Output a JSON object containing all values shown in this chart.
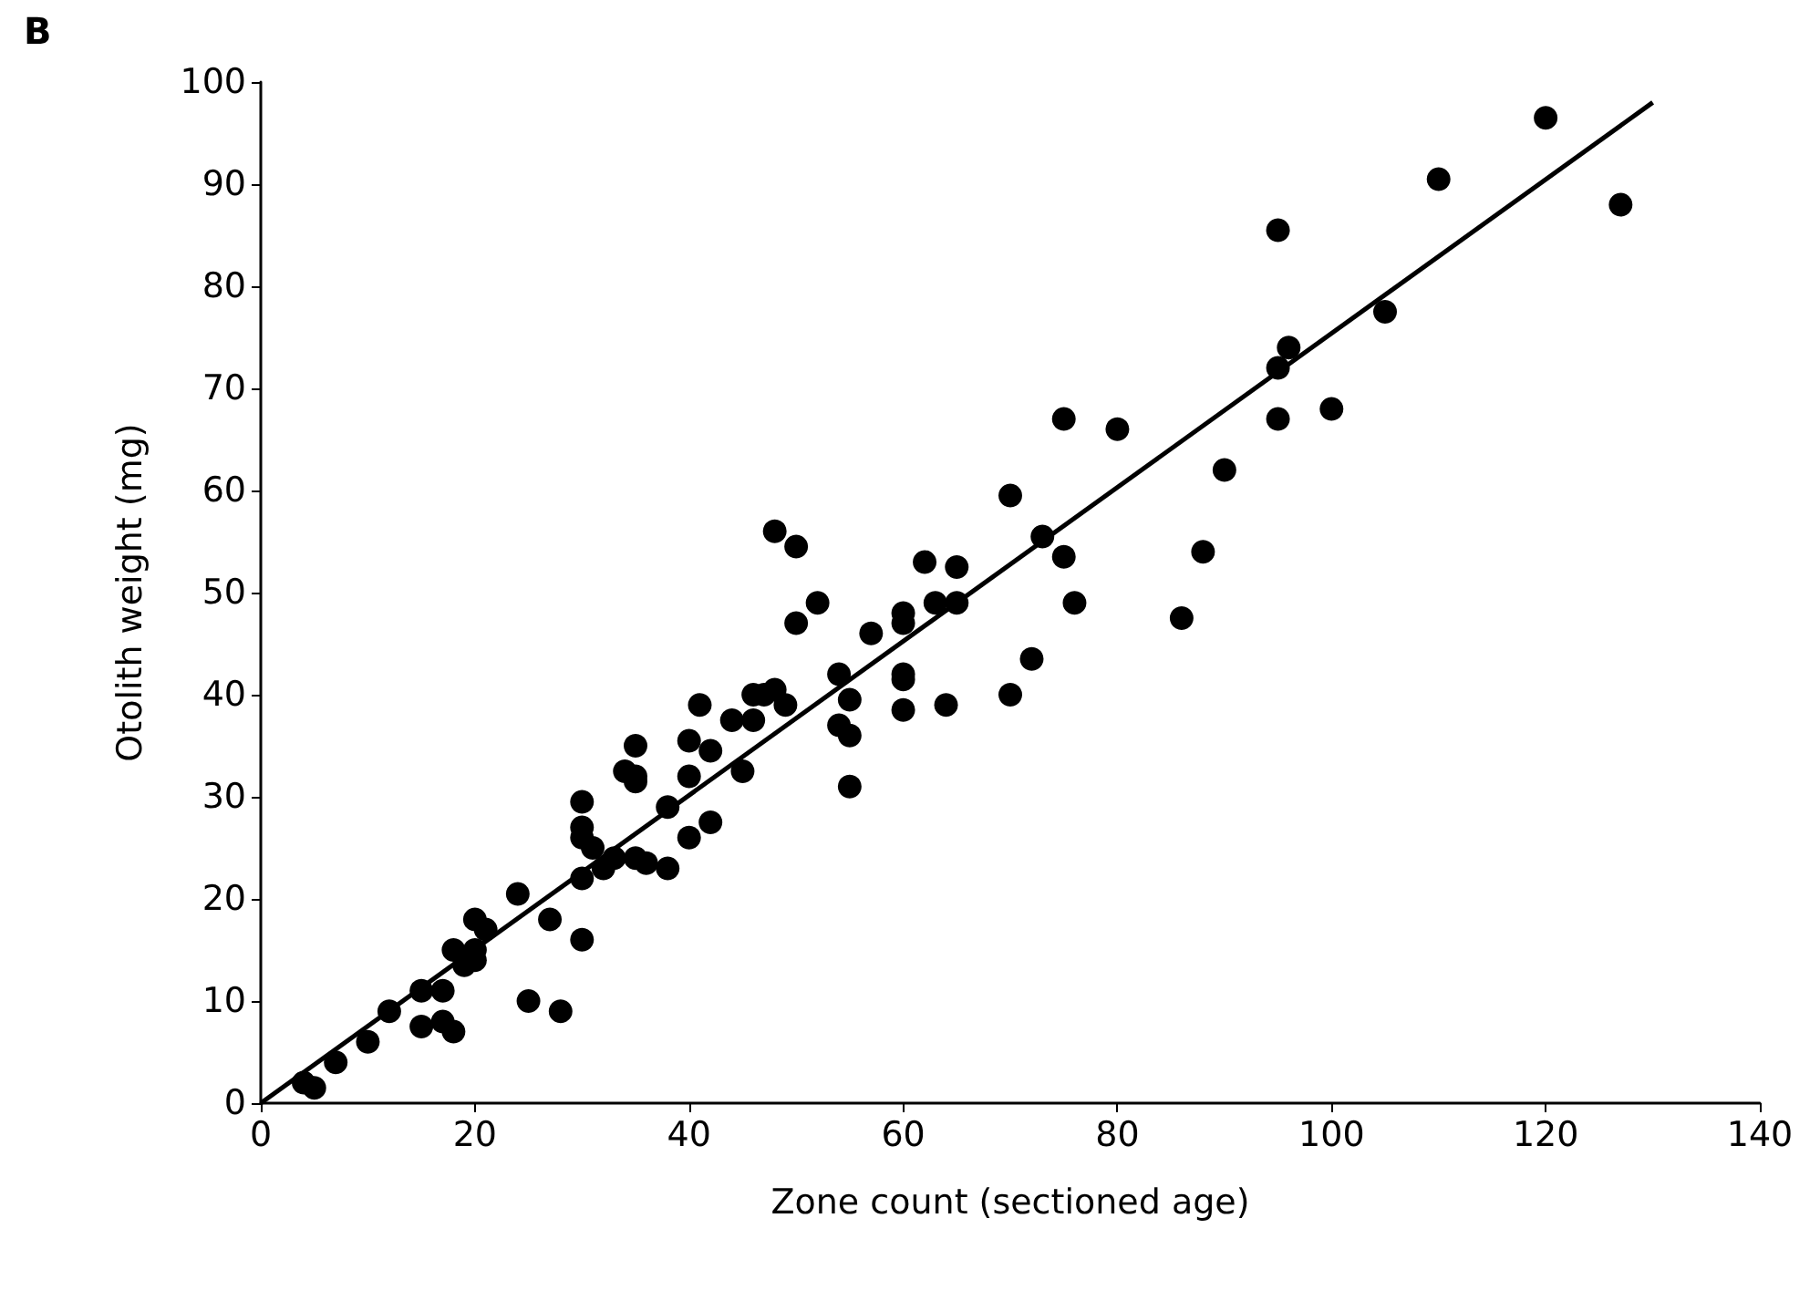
{
  "chart_data": {
    "type": "scatter",
    "title": "B",
    "xlabel": "Zone count (sectioned age)",
    "ylabel": "Otolith weight (mg)",
    "xlim": [
      0,
      140
    ],
    "xticks": [
      0,
      20,
      40,
      60,
      80,
      100,
      120,
      140
    ],
    "ylim": [
      0,
      100
    ],
    "yticks": [
      0,
      10,
      20,
      30,
      40,
      50,
      60,
      70,
      80,
      90,
      100
    ],
    "grid": false,
    "marker": "circle",
    "series": [
      {
        "color": "#000000",
        "x": [
          4,
          5,
          7,
          10,
          12,
          15,
          15,
          17,
          17,
          18,
          18,
          19,
          20,
          20,
          20,
          21,
          24,
          25,
          27,
          28,
          30,
          30,
          30,
          30,
          30,
          31,
          32,
          33,
          34,
          35,
          35,
          35,
          35,
          36,
          38,
          38,
          40,
          40,
          40,
          41,
          42,
          42,
          44,
          45,
          46,
          46,
          47,
          48,
          48,
          49,
          50,
          50,
          52,
          54,
          54,
          55,
          55,
          55,
          57,
          60,
          60,
          60,
          60,
          60,
          62,
          63,
          64,
          65,
          65,
          70,
          70,
          72,
          73,
          75,
          75,
          76,
          80,
          86,
          88,
          90,
          95,
          95,
          95,
          96,
          100,
          105,
          110,
          120,
          127
        ],
        "values": [
          2,
          1.5,
          4,
          6,
          9,
          11,
          7.5,
          11,
          8,
          15,
          7,
          13.5,
          15,
          18,
          14,
          17,
          20.5,
          10,
          18,
          9,
          29.5,
          27,
          26,
          22,
          16,
          25,
          23,
          24,
          32.5,
          31.5,
          35,
          32,
          24,
          23.5,
          23,
          29,
          35.5,
          32,
          26,
          39,
          34.5,
          27.5,
          37.5,
          32.5,
          40,
          37.5,
          40,
          56,
          40.5,
          39,
          54.5,
          47,
          49,
          42,
          37,
          39.5,
          36,
          31,
          46,
          48,
          47,
          42,
          41.5,
          38.5,
          53,
          49,
          39,
          52.5,
          49,
          59.5,
          40,
          43.5,
          55.5,
          67,
          53.5,
          49,
          66,
          47.5,
          54,
          62,
          85.5,
          72,
          67,
          74,
          68,
          77.5,
          90.5,
          96.5,
          88
        ]
      },
      {
        "type": "line",
        "color": "#000000",
        "marker": "none",
        "line_style": "solid",
        "x": [
          0,
          130
        ],
        "values": [
          0,
          98
        ]
      }
    ]
  }
}
